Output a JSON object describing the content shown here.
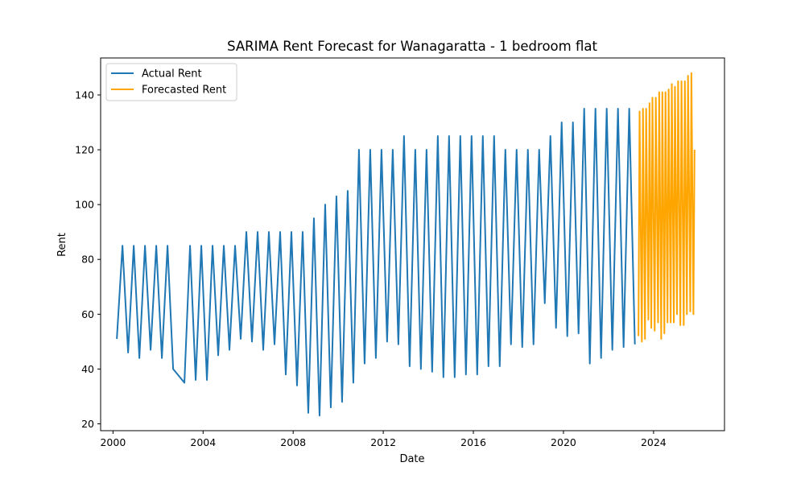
{
  "chart_data": {
    "type": "line",
    "title": "SARIMA Rent Forecast for Wanagaratta - 1 bedroom flat",
    "xlabel": "Date",
    "ylabel": "Rent",
    "xlim": [
      1999.45,
      2027.15
    ],
    "ylim": [
      17.5,
      153.5
    ],
    "xticks": [
      2000,
      2004,
      2008,
      2012,
      2016,
      2020,
      2024
    ],
    "yticks": [
      20,
      40,
      60,
      80,
      100,
      120,
      140
    ],
    "grid": false,
    "legend_position": "top-left",
    "series": [
      {
        "name": "Actual Rent",
        "color": "#1f77b4",
        "points": [
          [
            2000.17,
            51
          ],
          [
            2000.42,
            85
          ],
          [
            2000.67,
            46
          ],
          [
            2000.92,
            85
          ],
          [
            2001.17,
            44
          ],
          [
            2001.42,
            85
          ],
          [
            2001.67,
            47
          ],
          [
            2001.92,
            85
          ],
          [
            2002.17,
            44
          ],
          [
            2002.42,
            85
          ],
          [
            2002.67,
            40
          ],
          [
            2003.17,
            35
          ],
          [
            2003.42,
            85
          ],
          [
            2003.67,
            36
          ],
          [
            2003.92,
            85
          ],
          [
            2004.17,
            36
          ],
          [
            2004.42,
            85
          ],
          [
            2004.67,
            45
          ],
          [
            2004.92,
            85
          ],
          [
            2005.17,
            47
          ],
          [
            2005.42,
            85
          ],
          [
            2005.67,
            51
          ],
          [
            2005.92,
            90
          ],
          [
            2006.17,
            50
          ],
          [
            2006.42,
            90
          ],
          [
            2006.67,
            47
          ],
          [
            2006.92,
            90
          ],
          [
            2007.17,
            49
          ],
          [
            2007.42,
            90
          ],
          [
            2007.67,
            38
          ],
          [
            2007.92,
            90
          ],
          [
            2008.17,
            34
          ],
          [
            2008.42,
            90
          ],
          [
            2008.67,
            24
          ],
          [
            2008.92,
            95
          ],
          [
            2009.17,
            23
          ],
          [
            2009.42,
            100
          ],
          [
            2009.67,
            26
          ],
          [
            2009.92,
            103
          ],
          [
            2010.17,
            28
          ],
          [
            2010.42,
            105
          ],
          [
            2010.67,
            35
          ],
          [
            2010.92,
            120
          ],
          [
            2011.17,
            42
          ],
          [
            2011.42,
            120
          ],
          [
            2011.67,
            44
          ],
          [
            2011.92,
            120
          ],
          [
            2012.17,
            50
          ],
          [
            2012.42,
            120
          ],
          [
            2012.67,
            49
          ],
          [
            2012.92,
            125
          ],
          [
            2013.17,
            41
          ],
          [
            2013.42,
            120
          ],
          [
            2013.67,
            40
          ],
          [
            2013.92,
            120
          ],
          [
            2014.17,
            39
          ],
          [
            2014.42,
            125
          ],
          [
            2014.67,
            37
          ],
          [
            2014.92,
            125
          ],
          [
            2015.17,
            37
          ],
          [
            2015.42,
            125
          ],
          [
            2015.67,
            38
          ],
          [
            2015.92,
            125
          ],
          [
            2016.17,
            38
          ],
          [
            2016.42,
            125
          ],
          [
            2016.67,
            41
          ],
          [
            2016.92,
            125
          ],
          [
            2017.17,
            41
          ],
          [
            2017.42,
            120
          ],
          [
            2017.67,
            49
          ],
          [
            2017.92,
            120
          ],
          [
            2018.17,
            48
          ],
          [
            2018.42,
            120
          ],
          [
            2018.67,
            49
          ],
          [
            2018.92,
            120
          ],
          [
            2019.17,
            64
          ],
          [
            2019.42,
            125
          ],
          [
            2019.67,
            55
          ],
          [
            2019.92,
            130
          ],
          [
            2020.17,
            52
          ],
          [
            2020.42,
            130
          ],
          [
            2020.67,
            53
          ],
          [
            2020.92,
            135
          ],
          [
            2021.17,
            42
          ],
          [
            2021.42,
            135
          ],
          [
            2021.67,
            44
          ],
          [
            2021.92,
            135
          ],
          [
            2022.17,
            47
          ],
          [
            2022.42,
            135
          ],
          [
            2022.67,
            48
          ],
          [
            2022.92,
            135
          ],
          [
            2023.17,
            49
          ]
        ]
      },
      {
        "name": "Forecasted Rent",
        "color": "#ffa500",
        "points": [
          [
            2023.33,
            52
          ],
          [
            2023.38,
            134
          ],
          [
            2023.48,
            50
          ],
          [
            2023.53,
            135
          ],
          [
            2023.62,
            51
          ],
          [
            2023.67,
            135
          ],
          [
            2023.77,
            58
          ],
          [
            2023.82,
            137
          ],
          [
            2023.9,
            55
          ],
          [
            2023.95,
            139
          ],
          [
            2024.05,
            54
          ],
          [
            2024.1,
            139
          ],
          [
            2024.2,
            57
          ],
          [
            2024.25,
            141
          ],
          [
            2024.34,
            51
          ],
          [
            2024.39,
            141
          ],
          [
            2024.48,
            53
          ],
          [
            2024.53,
            141
          ],
          [
            2024.62,
            57
          ],
          [
            2024.67,
            142
          ],
          [
            2024.76,
            57
          ],
          [
            2024.81,
            144
          ],
          [
            2024.9,
            57
          ],
          [
            2024.95,
            143
          ],
          [
            2025.04,
            60
          ],
          [
            2025.09,
            145
          ],
          [
            2025.19,
            56
          ],
          [
            2025.24,
            145
          ],
          [
            2025.34,
            56
          ],
          [
            2025.39,
            145
          ],
          [
            2025.48,
            60
          ],
          [
            2025.53,
            147
          ],
          [
            2025.63,
            61
          ],
          [
            2025.68,
            148
          ],
          [
            2025.77,
            60
          ],
          [
            2025.82,
            120
          ]
        ]
      }
    ]
  }
}
